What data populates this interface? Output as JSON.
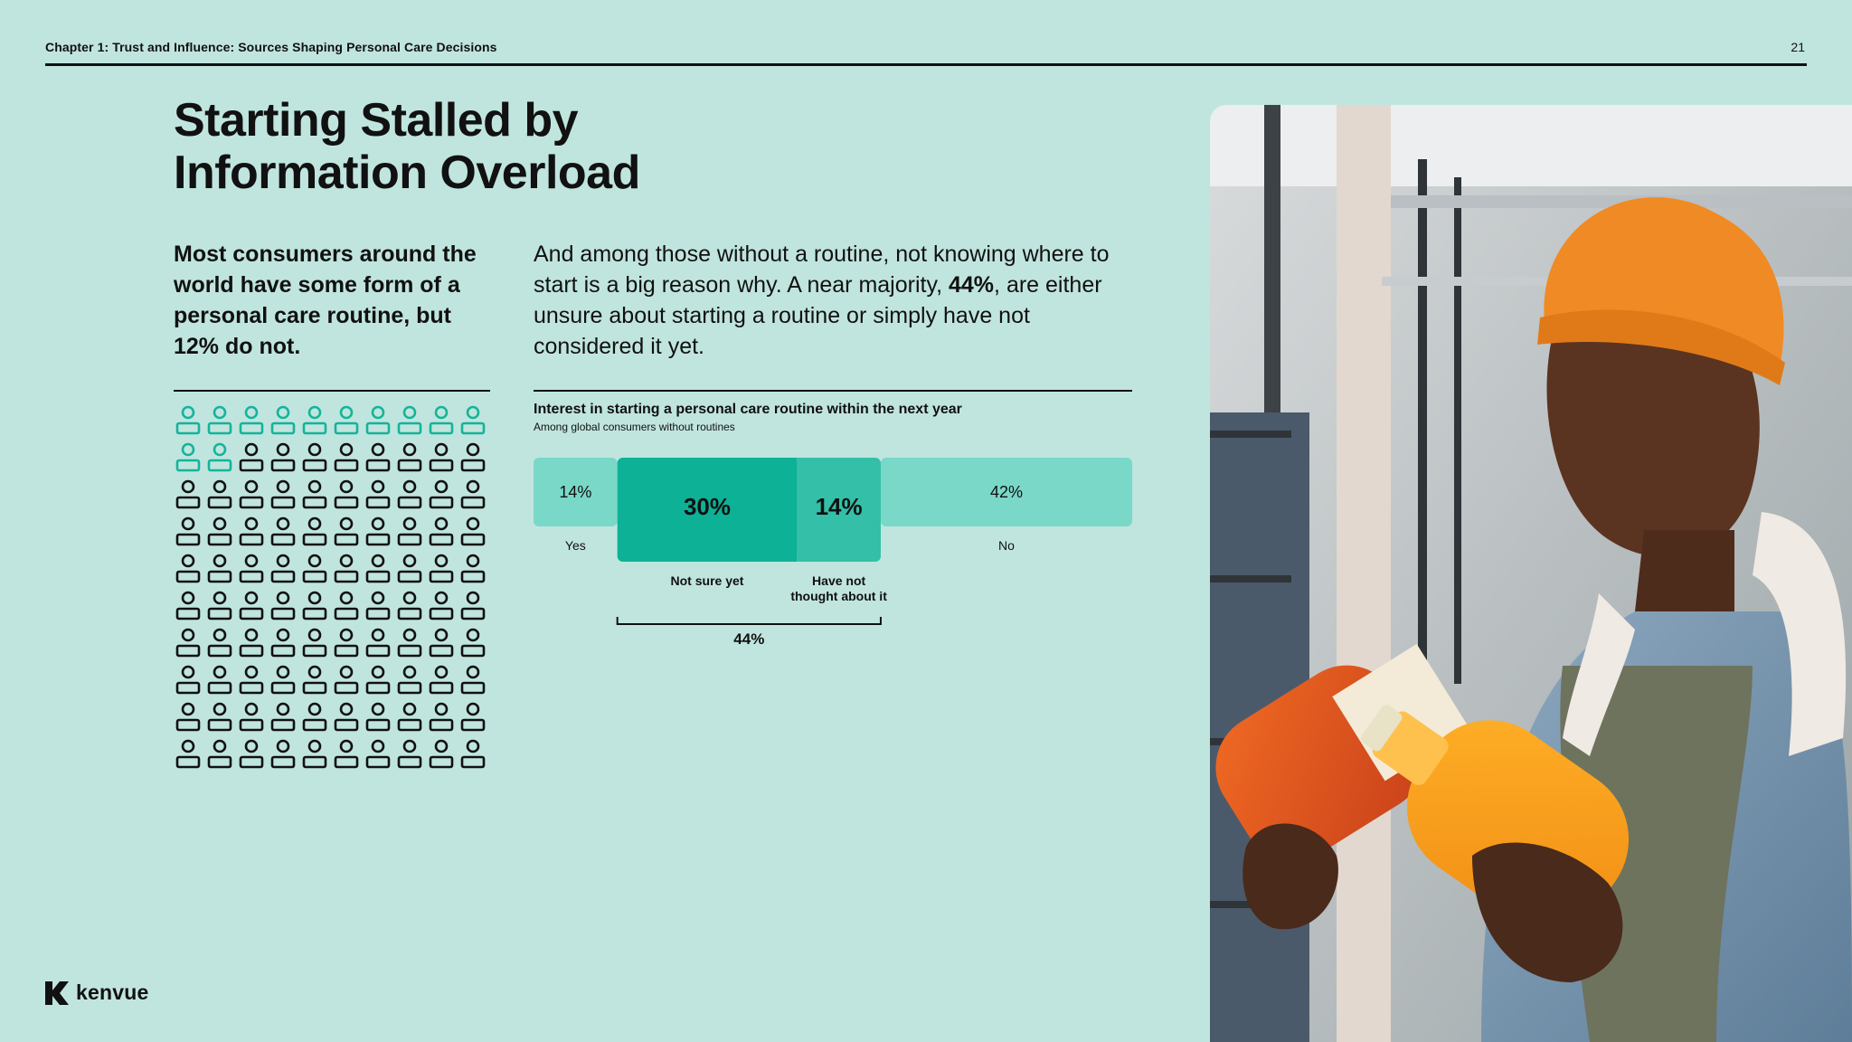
{
  "header": {
    "chapter": "Chapter 1: Trust and Influence: Sources Shaping Personal Care Decisions",
    "page_number": "21"
  },
  "title": {
    "line1": "Starting Stalled by",
    "line2": "Information Overload"
  },
  "lead": "Most consumers around the world have some form of a personal care routine, but 12% do not.",
  "body": {
    "before": "And among those without a routine, not knowing where to start is a big reason why. A near majority, ",
    "highlight": "44%",
    "after": ", are either unsure about starting a routine or simply have not considered it yet."
  },
  "pictogram": {
    "total": 100,
    "highlighted": 12,
    "columns": 10,
    "highlight_color": "#14b49a",
    "base_color": "#111111",
    "icon": "person-icon"
  },
  "chart_data": {
    "type": "bar",
    "orientation": "horizontal-stacked",
    "title": "Interest in starting a personal care routine within the next year",
    "subtitle": "Among global consumers without routines",
    "categories": [
      "Yes",
      "Not sure yet",
      "Have not thought about it",
      "No"
    ],
    "values": [
      14,
      30,
      14,
      42
    ],
    "value_labels": [
      "14%",
      "30%",
      "14%",
      "42%"
    ],
    "category_labels": [
      "Yes",
      "Not sure yet",
      "Have not\nthought about it",
      "No"
    ],
    "highlighted": [
      "Not sure yet",
      "Have not thought about it"
    ],
    "bracket_label": "44%",
    "colors": {
      "base": "#7ad8c8",
      "highlight_main": "#0db196",
      "highlight_secondary": "#33bfa8"
    },
    "unit": "%"
  },
  "brand": {
    "name": "kenvue"
  },
  "photo": {
    "icon": "shopper-photo"
  },
  "colors": {
    "background": "#c0e5de",
    "accent": "#14b49a",
    "text": "#111111"
  }
}
